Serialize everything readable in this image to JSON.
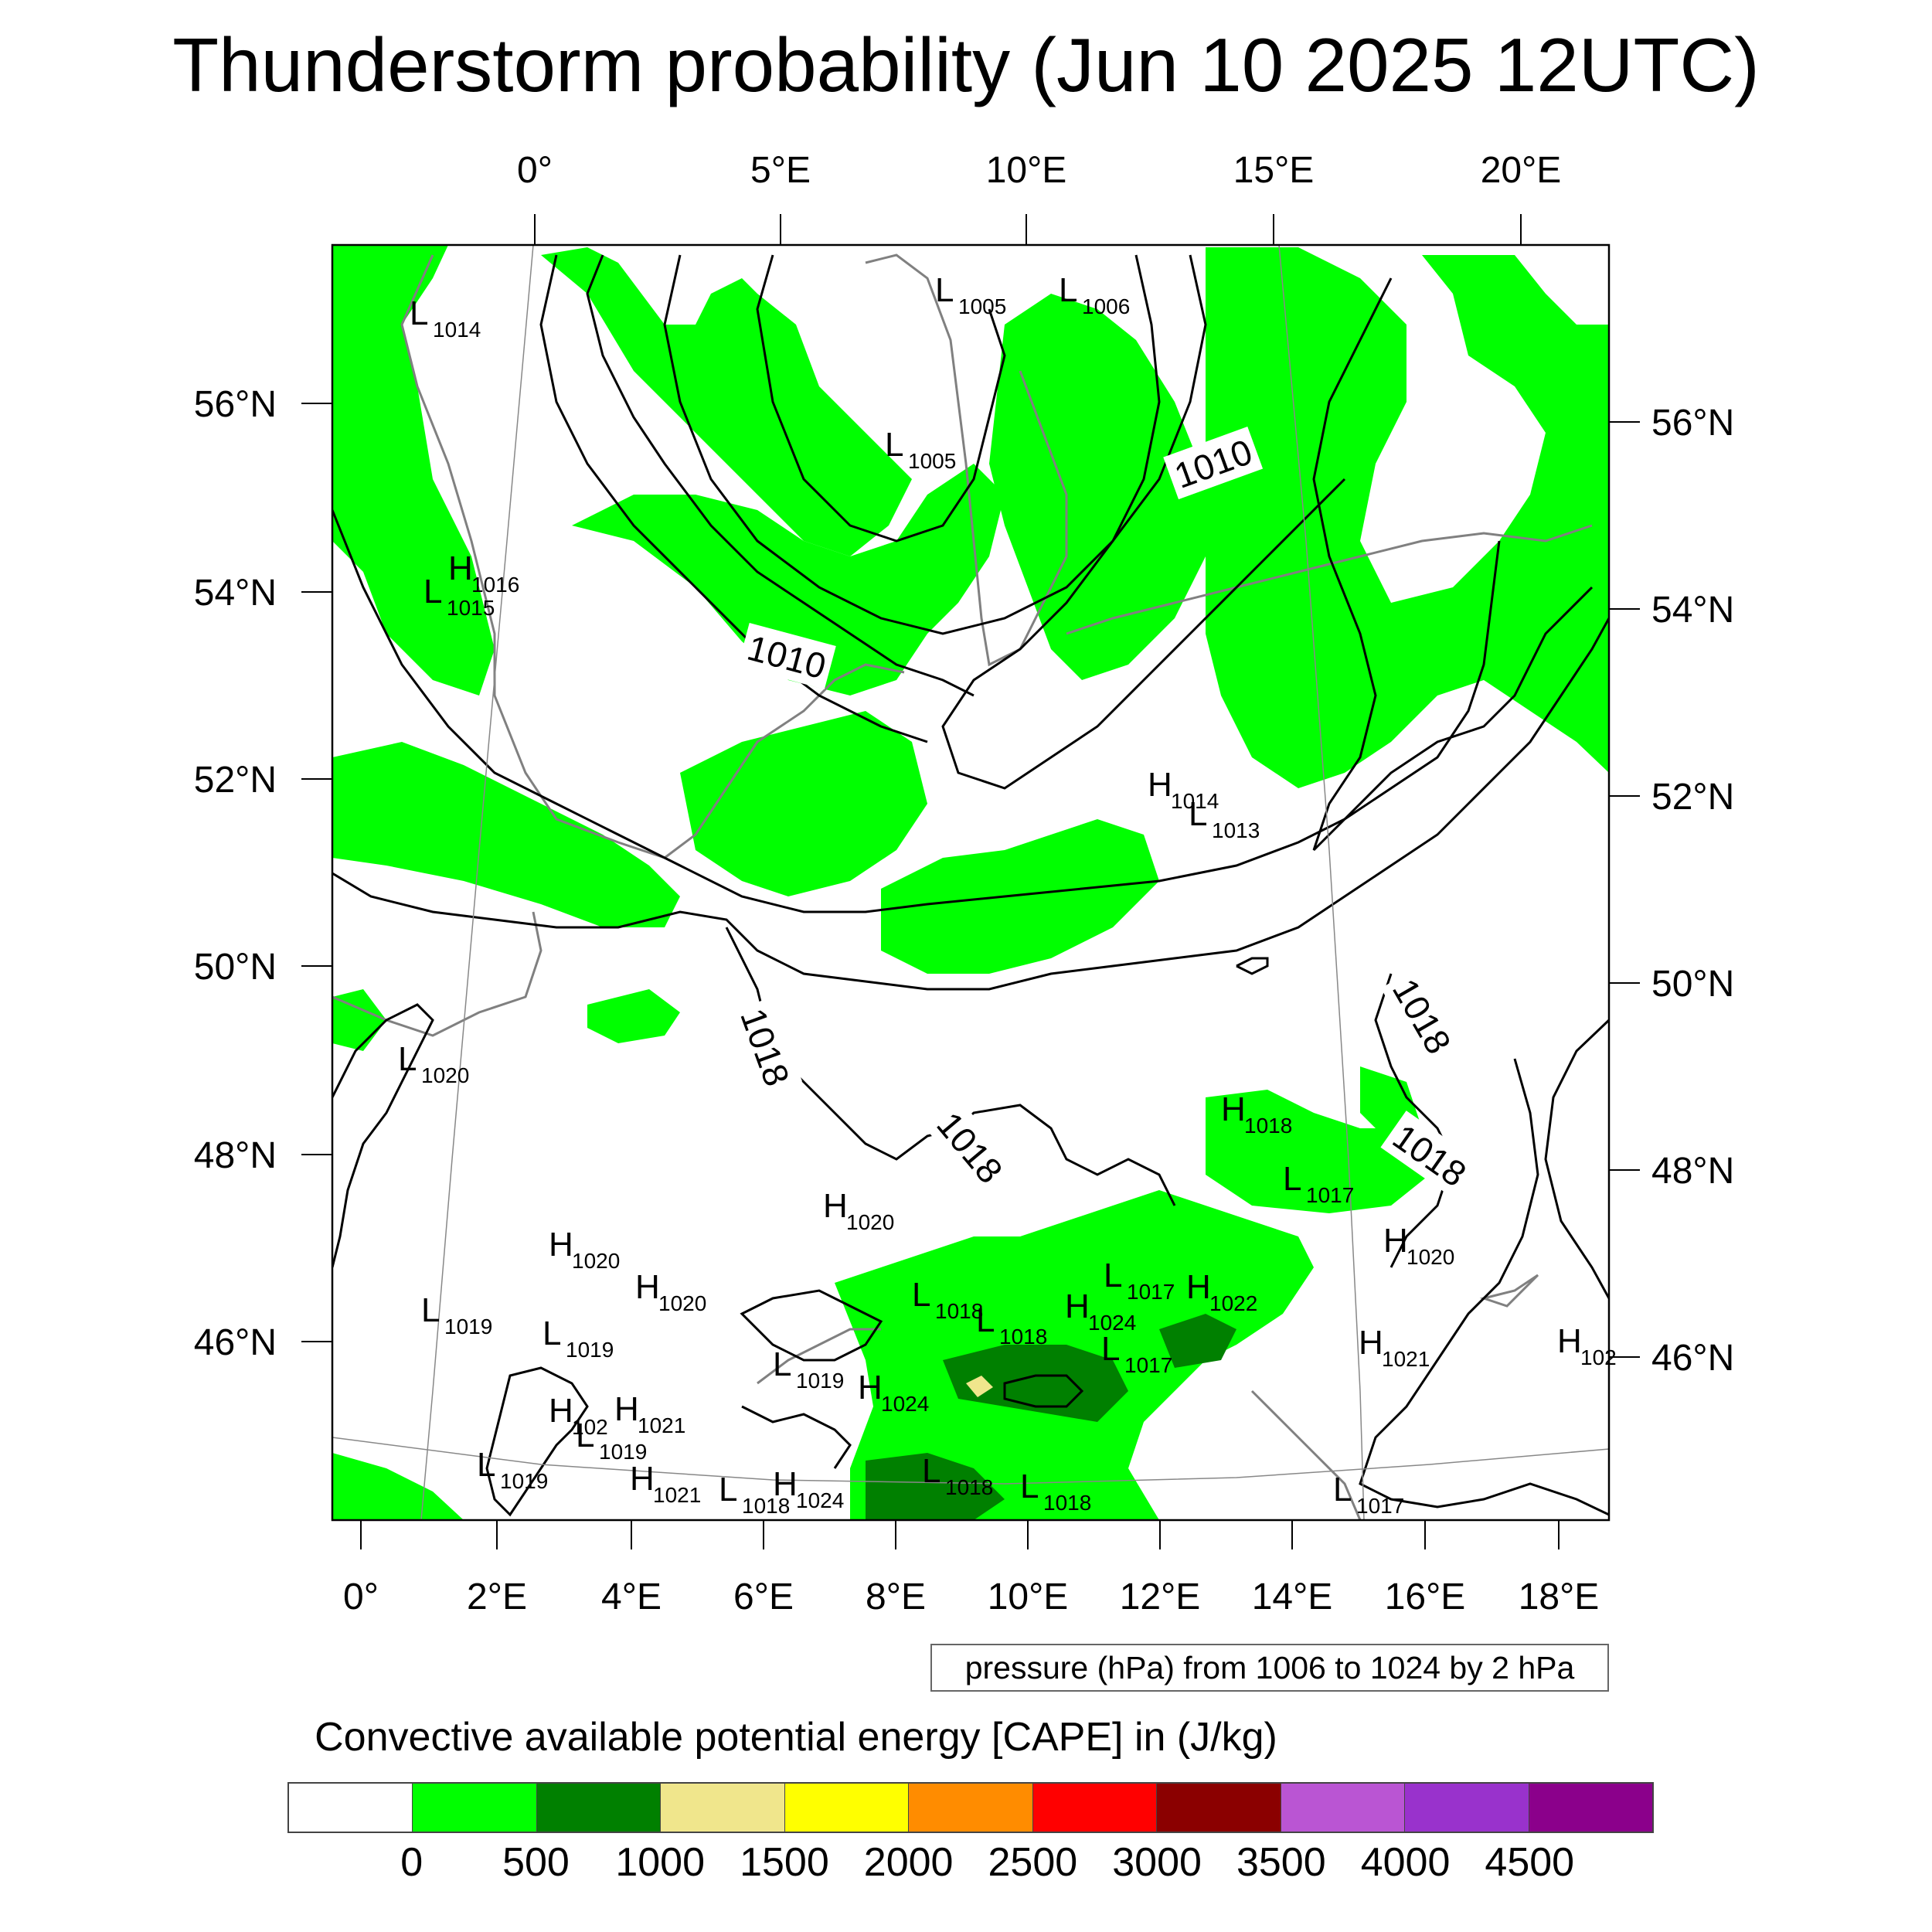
{
  "title": "Thunderstorm probability (Jun 10 2025 12UTC)",
  "top_axis_labels": [
    "0°",
    "5°E",
    "10°E",
    "15°E",
    "20°E"
  ],
  "bottom_axis_labels": [
    "0°",
    "2°E",
    "4°E",
    "6°E",
    "8°E",
    "10°E",
    "12°E",
    "14°E",
    "16°E",
    "18°E"
  ],
  "left_axis_labels": [
    "56°N",
    "54°N",
    "52°N",
    "50°N",
    "48°N",
    "46°N"
  ],
  "right_axis_labels": [
    "56°N",
    "54°N",
    "52°N",
    "50°N",
    "48°N",
    "46°N"
  ],
  "isobar_labels": [
    {
      "text": "1010",
      "angle": 15
    },
    {
      "text": "1010",
      "angle": -20
    },
    {
      "text": "1018",
      "angle": 70
    },
    {
      "text": "1018",
      "angle": 50
    },
    {
      "text": "1018",
      "angle": 60
    },
    {
      "text": "1018",
      "angle": 35
    }
  ],
  "pressure_centers": [
    {
      "kind": "L",
      "value": "1014"
    },
    {
      "kind": "L",
      "value": "1005"
    },
    {
      "kind": "L",
      "value": "1006"
    },
    {
      "kind": "L",
      "value": "1005"
    },
    {
      "kind": "H",
      "value": "1016"
    },
    {
      "kind": "L",
      "value": "1015"
    },
    {
      "kind": "H",
      "value": "1014"
    },
    {
      "kind": "L",
      "value": "1013"
    },
    {
      "kind": "L",
      "value": "1020"
    },
    {
      "kind": "H",
      "value": "1018"
    },
    {
      "kind": "L",
      "value": "1017"
    },
    {
      "kind": "H",
      "value": "1020"
    },
    {
      "kind": "H",
      "value": "1020"
    },
    {
      "kind": "H",
      "value": "1020"
    },
    {
      "kind": "H",
      "value": "1020"
    },
    {
      "kind": "L",
      "value": "1019"
    },
    {
      "kind": "L",
      "value": "1019"
    },
    {
      "kind": "L",
      "value": "1018"
    },
    {
      "kind": "L",
      "value": "1018"
    },
    {
      "kind": "L",
      "value": "1017"
    },
    {
      "kind": "H",
      "value": "1024"
    },
    {
      "kind": "H",
      "value": "1022"
    },
    {
      "kind": "L",
      "value": "1017"
    },
    {
      "kind": "H",
      "value": "1021"
    },
    {
      "kind": "H",
      "value": "102"
    },
    {
      "kind": "L",
      "value": "1019"
    },
    {
      "kind": "H",
      "value": "1024"
    },
    {
      "kind": "H",
      "value": "102"
    },
    {
      "kind": "H",
      "value": "1021"
    },
    {
      "kind": "L",
      "value": "1019"
    },
    {
      "kind": "L",
      "value": "1019"
    },
    {
      "kind": "H",
      "value": "1021"
    },
    {
      "kind": "L",
      "value": "1018"
    },
    {
      "kind": "H",
      "value": "1024"
    },
    {
      "kind": "L",
      "value": "1018"
    },
    {
      "kind": "L",
      "value": "1018"
    },
    {
      "kind": "L",
      "value": "1017"
    }
  ],
  "pressure_note": "pressure (hPa) from 1006 to 1024 by 2 hPa",
  "colorbar": {
    "title": "Convective available potential energy [CAPE] in (J/kg)",
    "colors": [
      "#ffffff",
      "#00ff00",
      "#008000",
      "#f0e68c",
      "#ffff00",
      "#ff8c00",
      "#ff0000",
      "#8b0000",
      "#ba55d3",
      "#9932cc",
      "#8b008b"
    ],
    "labels": [
      "0",
      "500",
      "1000",
      "1500",
      "2000",
      "2500",
      "3000",
      "3500",
      "4000",
      "4500"
    ]
  },
  "palette": {
    "cape_low": "#00ff00",
    "cape_mid": "#008000",
    "cape_high": "#f0e68c",
    "coastline": "#808080",
    "isobar": "#000000"
  }
}
